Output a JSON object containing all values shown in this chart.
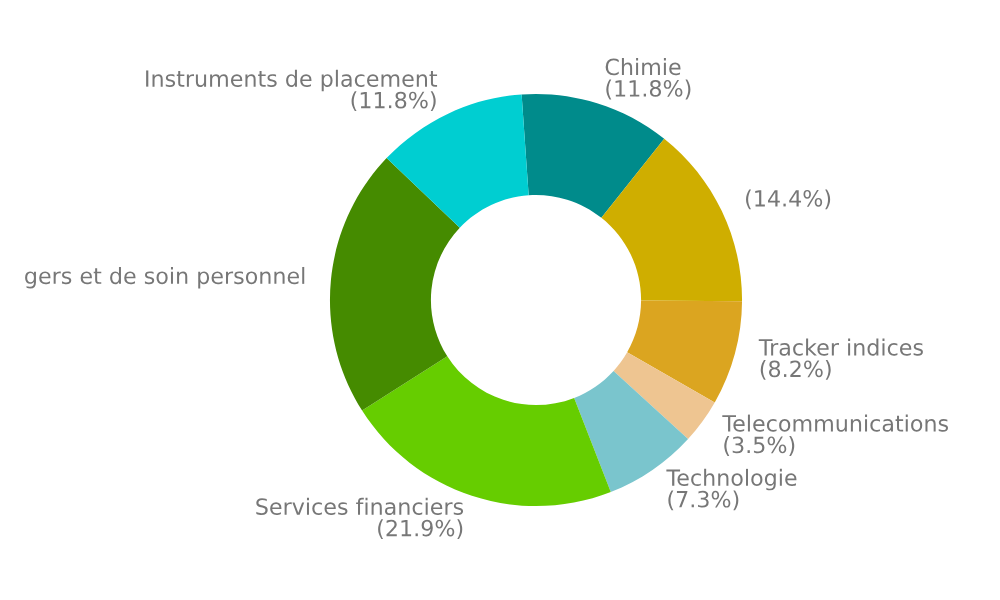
{
  "chart_data": {
    "type": "donut",
    "categories": [
      "Chimie",
      null,
      "Tracker indices",
      "Telecommunications",
      "Technologie",
      "Services financiers",
      "gers et de soin personnel",
      "Instruments de placement"
    ],
    "values": [
      11.8,
      14.4,
      8.2,
      3.5,
      7.3,
      21.9,
      21.1,
      11.8
    ],
    "value_labels": [
      "(11.8%)",
      "(14.4%)",
      "(8.2%)",
      "(3.5%)",
      "(7.3%)",
      "(21.9%)",
      null,
      "(11.8%)"
    ],
    "colors": [
      "#008b8b",
      "#cfae00",
      "#dba520",
      "#eec591",
      "#7ac5cd",
      "#66cd00",
      "#458b00",
      "#00ced1"
    ]
  }
}
